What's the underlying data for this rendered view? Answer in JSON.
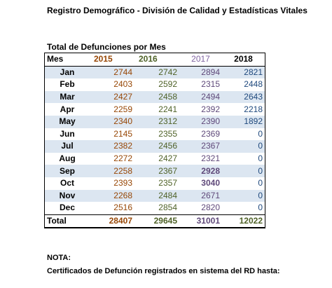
{
  "title": "Registro Demográfico - División de Calidad y Estadísticas Vitales",
  "table_title": "Total de Defunciones por Mes",
  "headers": {
    "mes": "Mes",
    "y2015": "2015",
    "y2016": "2016",
    "y2017": "2017",
    "y2018": "2018"
  },
  "rows": [
    {
      "month": "Jan",
      "v2015": "2744",
      "v2016": "2742",
      "v2017": "2894",
      "v2018": "2821"
    },
    {
      "month": "Feb",
      "v2015": "2403",
      "v2016": "2592",
      "v2017": "2315",
      "v2018": "2448"
    },
    {
      "month": "Mar",
      "v2015": "2427",
      "v2016": "2458",
      "v2017": "2494",
      "v2018": "2643"
    },
    {
      "month": "Apr",
      "v2015": "2259",
      "v2016": "2241",
      "v2017": "2392",
      "v2018": "2218"
    },
    {
      "month": "May",
      "v2015": "2340",
      "v2016": "2312",
      "v2017": "2390",
      "v2018": "1892"
    },
    {
      "month": "Jun",
      "v2015": "2145",
      "v2016": "2355",
      "v2017": "2369",
      "v2018": "0"
    },
    {
      "month": "Jul",
      "v2015": "2382",
      "v2016": "2456",
      "v2017": "2367",
      "v2018": "0"
    },
    {
      "month": "Aug",
      "v2015": "2272",
      "v2016": "2427",
      "v2017": "2321",
      "v2018": "0"
    },
    {
      "month": "Sep",
      "v2015": "2258",
      "v2016": "2367",
      "v2017": "2928",
      "v2018": "0"
    },
    {
      "month": "Oct",
      "v2015": "2393",
      "v2016": "2357",
      "v2017": "3040",
      "v2018": "0"
    },
    {
      "month": "Nov",
      "v2015": "2268",
      "v2016": "2484",
      "v2017": "2671",
      "v2018": "0"
    },
    {
      "month": "Dec",
      "v2015": "2516",
      "v2016": "2854",
      "v2017": "2820",
      "v2018": "0"
    }
  ],
  "total": {
    "label": "Total",
    "v2015": "28407",
    "v2016": "29645",
    "v2017": "31001",
    "v2018": "12022"
  },
  "note_label": "NOTA:",
  "note_text": "Certificados de Defunción registrados en sistema del RD hasta:",
  "colors": {
    "c2015": "#974706",
    "c2016": "#4f6228",
    "c2017": "#5f497a",
    "c2018": "#1f497d",
    "shade": "#dce6f1"
  }
}
